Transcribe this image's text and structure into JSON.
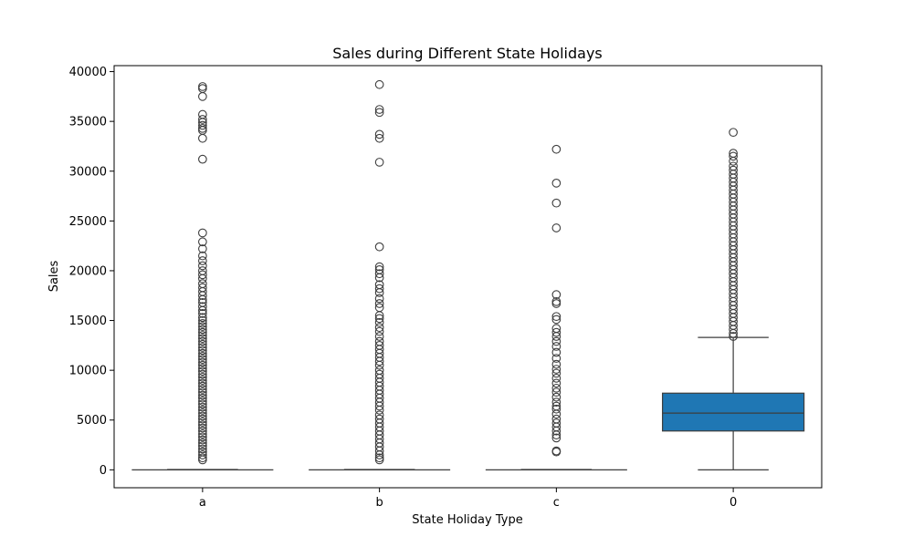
{
  "chart_data": {
    "type": "box",
    "title": "Sales during Different State Holidays",
    "xlabel": "State Holiday Type",
    "ylabel": "Sales",
    "ylim": [
      -1800,
      40600
    ],
    "yticks": [
      0,
      5000,
      10000,
      15000,
      20000,
      25000,
      30000,
      35000,
      40000
    ],
    "grid": false,
    "colors": {
      "box_fill": "#1f77b4",
      "line": "#3d3d3d",
      "frame": "#000000"
    },
    "categories": [
      "a",
      "b",
      "c",
      "0"
    ],
    "boxes": [
      {
        "category": "a",
        "q1": 0,
        "median": 0,
        "q3": 0,
        "whisker_low": 0,
        "whisker_high": 0,
        "outliers": [
          38500,
          38300,
          37500,
          35700,
          35200,
          34900,
          34600,
          34300,
          34100,
          33300,
          31200,
          23800,
          22900,
          22200,
          21500,
          21000,
          20500,
          20000,
          19600,
          19200,
          18700,
          18300,
          17900,
          17500,
          17100,
          16800,
          16400,
          16000,
          15700,
          15300,
          15000,
          14700,
          14400,
          14100,
          13800,
          13500,
          13200,
          12900,
          12600,
          12300,
          12000,
          11700,
          11400,
          11100,
          10800,
          10500,
          10200,
          9900,
          9600,
          9300,
          9000,
          8700,
          8400,
          8100,
          7800,
          7500,
          7200,
          6900,
          6600,
          6300,
          6000,
          5700,
          5400,
          5100,
          4800,
          4500,
          4200,
          3900,
          3600,
          3300,
          3000,
          2700,
          2400,
          2100,
          1800,
          1500,
          1200,
          1000
        ]
      },
      {
        "category": "b",
        "q1": 0,
        "median": 0,
        "q3": 0,
        "whisker_low": 0,
        "whisker_high": 0,
        "outliers": [
          38700,
          36200,
          35900,
          33700,
          33300,
          30900,
          22400,
          20400,
          20100,
          19700,
          19300,
          18600,
          18200,
          17800,
          17200,
          16700,
          16300,
          15500,
          15200,
          14800,
          14300,
          13900,
          13400,
          12900,
          12500,
          12100,
          11700,
          11300,
          10900,
          10500,
          10000,
          9600,
          9200,
          8800,
          8400,
          8000,
          7600,
          7200,
          6800,
          6400,
          6000,
          5500,
          5100,
          4700,
          4300,
          3900,
          3500,
          3100,
          2700,
          2300,
          1900,
          1500,
          1200,
          1000
        ]
      },
      {
        "category": "c",
        "q1": 0,
        "median": 0,
        "q3": 0,
        "whisker_low": 0,
        "whisker_high": 0,
        "outliers": [
          32200,
          28800,
          26800,
          24300,
          17600,
          16900,
          16700,
          15400,
          15100,
          14200,
          13800,
          13400,
          12900,
          12400,
          11800,
          11200,
          10600,
          10100,
          9700,
          9200,
          8700,
          8200,
          7800,
          7300,
          6800,
          6400,
          6100,
          5600,
          5100,
          4700,
          4300,
          3900,
          3500,
          3200,
          1900,
          1800
        ]
      },
      {
        "category": "0",
        "q1": 3900,
        "median": 5700,
        "q3": 7700,
        "whisker_low": 0,
        "whisker_high": 13300,
        "outliers": [
          33900,
          31800,
          31500,
          31000,
          30500,
          30100,
          29700,
          29300,
          28900,
          28500,
          28100,
          27700,
          27300,
          26900,
          26500,
          26100,
          25700,
          25300,
          24900,
          24500,
          24100,
          23700,
          23300,
          22900,
          22500,
          22100,
          21700,
          21300,
          20900,
          20500,
          20100,
          19700,
          19300,
          18900,
          18500,
          18100,
          17700,
          17300,
          16900,
          16500,
          16100,
          15700,
          15300,
          14900,
          14500,
          14100,
          13700,
          13400
        ]
      }
    ]
  }
}
